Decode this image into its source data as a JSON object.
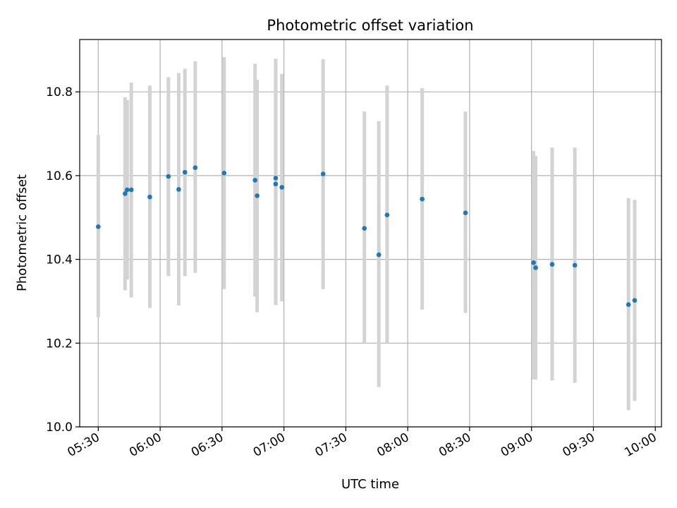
{
  "chart_data": {
    "type": "scatter",
    "title": "Photometric offset variation",
    "xlabel": "UTC time",
    "ylabel": "Photometric offset",
    "xlim": [
      "05:21",
      "10:03"
    ],
    "ylim": [
      10.0,
      10.925
    ],
    "xticks": [
      "05:30",
      "06:00",
      "06:30",
      "07:00",
      "07:30",
      "08:00",
      "08:30",
      "09:00",
      "09:30",
      "10:00"
    ],
    "yticks": [
      10.0,
      10.2,
      10.4,
      10.6,
      10.8
    ],
    "grid": true,
    "point_color": "#1f77b4",
    "errorbar_color": "#d3d3d3",
    "points": [
      {
        "time": "05:30",
        "y": 10.478,
        "ylow": 10.262,
        "yhigh": 10.697
      },
      {
        "time": "05:43",
        "y": 10.557,
        "ylow": 10.326,
        "yhigh": 10.787
      },
      {
        "time": "05:44",
        "y": 10.566,
        "ylow": 10.352,
        "yhigh": 10.78
      },
      {
        "time": "05:46",
        "y": 10.566,
        "ylow": 10.309,
        "yhigh": 10.822
      },
      {
        "time": "05:55",
        "y": 10.549,
        "ylow": 10.284,
        "yhigh": 10.815
      },
      {
        "time": "06:04",
        "y": 10.598,
        "ylow": 10.36,
        "yhigh": 10.835
      },
      {
        "time": "06:09",
        "y": 10.567,
        "ylow": 10.29,
        "yhigh": 10.845
      },
      {
        "time": "06:12",
        "y": 10.608,
        "ylow": 10.36,
        "yhigh": 10.855
      },
      {
        "time": "06:17",
        "y": 10.619,
        "ylow": 10.368,
        "yhigh": 10.873
      },
      {
        "time": "06:31",
        "y": 10.606,
        "ylow": 10.329,
        "yhigh": 10.883
      },
      {
        "time": "06:46",
        "y": 10.589,
        "ylow": 10.311,
        "yhigh": 10.867
      },
      {
        "time": "06:47",
        "y": 10.552,
        "ylow": 10.274,
        "yhigh": 10.829
      },
      {
        "time": "06:56",
        "y": 10.594,
        "ylow": 10.291,
        "yhigh": 10.879
      },
      {
        "time": "06:56",
        "y": 10.58,
        "ylow": 10.291,
        "yhigh": 10.86
      },
      {
        "time": "06:59",
        "y": 10.572,
        "ylow": 10.3,
        "yhigh": 10.843
      },
      {
        "time": "07:19",
        "y": 10.604,
        "ylow": 10.329,
        "yhigh": 10.878
      },
      {
        "time": "07:39",
        "y": 10.474,
        "ylow": 10.2,
        "yhigh": 10.753
      },
      {
        "time": "07:46",
        "y": 10.411,
        "ylow": 10.095,
        "yhigh": 10.73
      },
      {
        "time": "07:50",
        "y": 10.506,
        "ylow": 10.2,
        "yhigh": 10.815
      },
      {
        "time": "08:07",
        "y": 10.544,
        "ylow": 10.28,
        "yhigh": 10.809
      },
      {
        "time": "08:28",
        "y": 10.511,
        "ylow": 10.272,
        "yhigh": 10.753
      },
      {
        "time": "09:01",
        "y": 10.392,
        "ylow": 10.113,
        "yhigh": 10.659
      },
      {
        "time": "09:02",
        "y": 10.38,
        "ylow": 10.113,
        "yhigh": 10.647
      },
      {
        "time": "09:10",
        "y": 10.388,
        "ylow": 10.111,
        "yhigh": 10.667
      },
      {
        "time": "09:21",
        "y": 10.386,
        "ylow": 10.105,
        "yhigh": 10.667
      },
      {
        "time": "09:47",
        "y": 10.292,
        "ylow": 10.04,
        "yhigh": 10.546
      },
      {
        "time": "09:50",
        "y": 10.302,
        "ylow": 10.062,
        "yhigh": 10.542
      }
    ]
  }
}
